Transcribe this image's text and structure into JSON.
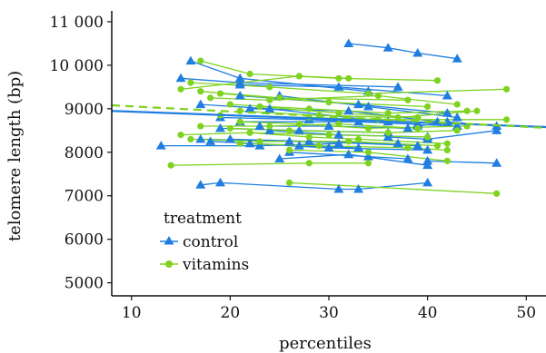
{
  "chart_data": {
    "type": "scatter",
    "xlabel": "percentiles",
    "ylabel": "telomere length (bp)",
    "xlim": [
      8,
      52
    ],
    "ylim": [
      4700,
      11250
    ],
    "x_ticks": [
      10,
      20,
      30,
      40,
      50
    ],
    "x_tick_labels": [
      "10",
      "20",
      "30",
      "40",
      "50"
    ],
    "y_ticks": [
      5000,
      6000,
      7000,
      8000,
      9000,
      10000,
      11000
    ],
    "y_tick_labels": [
      "5000",
      "6000",
      "7000",
      "8000",
      "9000",
      "10 000",
      "11 000"
    ],
    "legend": {
      "title": "treatment",
      "position": "bottom-left",
      "entries": [
        "control",
        "vitamins"
      ]
    },
    "colors": {
      "control": "#1f7ee0",
      "vitamins": "#7ed321"
    },
    "series": [
      {
        "name": "control",
        "marker": "triangle",
        "individuals": [
          [
            [
              32,
              10500
            ],
            [
              36,
              10400
            ],
            [
              39,
              10280
            ],
            [
              43,
              10150
            ]
          ],
          [
            [
              16,
              10100
            ],
            [
              21,
              9700
            ],
            [
              34,
              9400
            ]
          ],
          [
            [
              15,
              9700
            ],
            [
              21,
              9600
            ],
            [
              37,
              9500
            ]
          ],
          [
            [
              21,
              9550
            ],
            [
              31,
              9500
            ],
            [
              42,
              9300
            ]
          ],
          [
            [
              21,
              9300
            ],
            [
              33,
              9100
            ],
            [
              42,
              8900
            ]
          ],
          [
            [
              25,
              9300
            ],
            [
              34,
              9050
            ],
            [
              43,
              8800
            ]
          ],
          [
            [
              17,
              9100
            ],
            [
              24,
              9000
            ],
            [
              36,
              8700
            ]
          ],
          [
            [
              22,
              9000
            ],
            [
              32,
              8950
            ],
            [
              41,
              8700
            ]
          ],
          [
            [
              19,
              8800
            ],
            [
              28,
              8750
            ],
            [
              39,
              8650
            ]
          ],
          [
            [
              21,
              8700
            ],
            [
              33,
              8700
            ],
            [
              43,
              8600
            ]
          ],
          [
            [
              23,
              8600
            ],
            [
              30,
              8600
            ],
            [
              38,
              8550
            ]
          ],
          [
            [
              19,
              8550
            ],
            [
              27,
              8500
            ],
            [
              36,
              8450
            ]
          ],
          [
            [
              24,
              8500
            ],
            [
              31,
              8400
            ],
            [
              40,
              8350
            ]
          ],
          [
            [
              17,
              8300
            ],
            [
              26,
              8250
            ],
            [
              37,
              8200
            ]
          ],
          [
            [
              20,
              8300
            ],
            [
              28,
              8250
            ],
            [
              39,
              8150
            ]
          ],
          [
            [
              13,
              8150
            ],
            [
              23,
              8150
            ],
            [
              31,
              8200
            ]
          ],
          [
            [
              18,
              8250
            ],
            [
              27,
              8150
            ],
            [
              33,
              8100
            ]
          ],
          [
            [
              22,
              8200
            ],
            [
              30,
              8100
            ],
            [
              40,
              8050
            ]
          ],
          [
            [
              25,
              7850
            ],
            [
              32,
              7950
            ],
            [
              40,
              7700
            ]
          ],
          [
            [
              26,
              8000
            ],
            [
              34,
              7900
            ],
            [
              38,
              7850
            ]
          ],
          [
            [
              40,
              7800
            ],
            [
              47,
              7750
            ]
          ],
          [
            [
              36,
              8350
            ],
            [
              40,
              8300
            ],
            [
              47,
              8500
            ]
          ],
          [
            [
              39,
              8600
            ],
            [
              42,
              8700
            ],
            [
              47,
              8600
            ]
          ],
          [
            [
              17,
              7250
            ],
            [
              19,
              7300
            ],
            [
              31,
              7150
            ],
            [
              33,
              7150
            ],
            [
              40,
              7300
            ]
          ]
        ]
      },
      {
        "name": "vitamins",
        "marker": "circle",
        "individuals": [
          [
            [
              17,
              10100
            ],
            [
              22,
              9800
            ],
            [
              31,
              9700
            ],
            [
              41,
              9650
            ]
          ],
          [
            [
              16,
              9600
            ],
            [
              24,
              9500
            ],
            [
              34,
              9350
            ],
            [
              48,
              9450
            ]
          ],
          [
            [
              15,
              9450
            ],
            [
              27,
              9750
            ],
            [
              32,
              9700
            ]
          ],
          [
            [
              17,
              9400
            ],
            [
              25,
              9250
            ],
            [
              38,
              9200
            ]
          ],
          [
            [
              19,
              9350
            ],
            [
              30,
              9150
            ],
            [
              40,
              9050
            ]
          ],
          [
            [
              18,
              9250
            ],
            [
              24,
              9200
            ],
            [
              35,
              9300
            ],
            [
              43,
              9100
            ]
          ],
          [
            [
              20,
              9100
            ],
            [
              28,
              9000
            ],
            [
              36,
              8900
            ],
            [
              44,
              8950
            ]
          ],
          [
            [
              23,
              9050
            ],
            [
              31,
              8900
            ],
            [
              39,
              8800
            ]
          ],
          [
            [
              21,
              8950
            ],
            [
              29,
              8850
            ],
            [
              37,
              8800
            ],
            [
              45,
              8950
            ]
          ],
          [
            [
              19,
              8850
            ],
            [
              28,
              8800
            ],
            [
              35,
              8750
            ],
            [
              48,
              8750
            ]
          ],
          [
            [
              21,
              8700
            ],
            [
              27,
              8650
            ],
            [
              34,
              8550
            ],
            [
              44,
              8600
            ]
          ],
          [
            [
              15,
              8400
            ],
            [
              22,
              8450
            ],
            [
              30,
              8400
            ],
            [
              40,
              8350
            ]
          ],
          [
            [
              17,
              8600
            ],
            [
              24,
              8600
            ],
            [
              31,
              8650
            ],
            [
              39,
              8550
            ]
          ],
          [
            [
              20,
              8550
            ],
            [
              26,
              8500
            ],
            [
              36,
              8450
            ],
            [
              43,
              8500
            ]
          ],
          [
            [
              22,
              8450
            ],
            [
              28,
              8350
            ],
            [
              33,
              8300
            ],
            [
              42,
              8200
            ]
          ],
          [
            [
              16,
              8300
            ],
            [
              23,
              8250
            ],
            [
              32,
              8250
            ],
            [
              41,
              8150
            ]
          ],
          [
            [
              21,
              8200
            ],
            [
              29,
              8150
            ],
            [
              38,
              8100
            ],
            [
              42,
              8050
            ]
          ],
          [
            [
              26,
              8050
            ],
            [
              34,
              8000
            ],
            [
              42,
              7800
            ]
          ],
          [
            [
              14,
              7700
            ],
            [
              28,
              7750
            ],
            [
              34,
              7750
            ]
          ],
          [
            [
              26,
              7300
            ],
            [
              47,
              7050
            ]
          ]
        ]
      }
    ],
    "trend_lines": [
      {
        "series": "control",
        "style": "solid",
        "x": [
          8,
          52
        ],
        "y": [
          8950,
          8580
        ]
      },
      {
        "series": "vitamins",
        "style": "dashed",
        "x": [
          8,
          52
        ],
        "y": [
          9080,
          8560
        ]
      }
    ]
  }
}
